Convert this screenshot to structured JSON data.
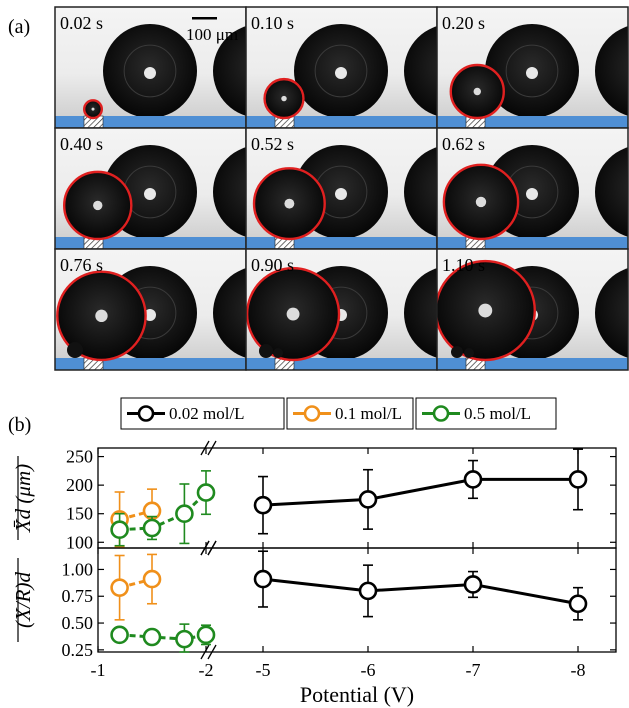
{
  "panel_a": {
    "label": "(a)",
    "scale_bar_label": "100 μm",
    "frames": [
      {
        "time": "0.02 s",
        "drop_r_frac": 0.025
      },
      {
        "time": "0.10 s",
        "drop_r_frac": 0.055
      },
      {
        "time": "0.20 s",
        "drop_r_frac": 0.075
      },
      {
        "time": "0.40 s",
        "drop_r_frac": 0.095
      },
      {
        "time": "0.52 s",
        "drop_r_frac": 0.1
      },
      {
        "time": "0.62 s",
        "drop_r_frac": 0.105
      },
      {
        "time": "0.76 s",
        "drop_r_frac": 0.125
      },
      {
        "time": "0.90 s",
        "drop_r_frac": 0.13
      },
      {
        "time": "1.10 s",
        "drop_r_frac": 0.14
      }
    ],
    "colors": {
      "substrate": "#4f8fd4",
      "contour": "#e02020",
      "drop": "#0d0d0d",
      "background_top": "#f2f2f2",
      "background_bottom": "#d8d8d8",
      "frame_border": "#222222"
    }
  },
  "panel_b": {
    "label": "(b)",
    "legend": [
      {
        "label": "0.02 mol/L",
        "color": "#000000"
      },
      {
        "label": "0.1 mol/L",
        "color": "#f0901a"
      },
      {
        "label": "0.5 mol/L",
        "color": "#1f8a1f"
      }
    ]
  },
  "chart_data": [
    {
      "type": "line",
      "ylabel": "X̄d (μm)",
      "ylim": [
        90,
        265
      ],
      "yticks": [
        100,
        150,
        200,
        250
      ],
      "xlabel": "Potential (V)",
      "axis_break": "between -2 and -5",
      "series": [
        {
          "name": "0.02 mol/L",
          "color": "#000000",
          "x": [
            -5,
            -6,
            -7,
            -8
          ],
          "y": [
            165,
            175,
            210,
            210
          ],
          "err": [
            50,
            52,
            33,
            53
          ]
        },
        {
          "name": "0.1 mol/L",
          "color": "#f0901a",
          "x": [
            -1.2,
            -1.5
          ],
          "y": [
            140,
            155
          ],
          "err": [
            48,
            38
          ]
        },
        {
          "name": "0.5 mol/L",
          "color": "#1f8a1f",
          "x": [
            -1.2,
            -1.5,
            -1.8,
            -2.0
          ],
          "y": [
            122,
            125,
            150,
            187
          ],
          "err": [
            28,
            20,
            52,
            38
          ]
        }
      ]
    },
    {
      "type": "line",
      "ylabel": "(X/R)d",
      "ylim": [
        0.23,
        1.2
      ],
      "yticks": [
        0.25,
        0.5,
        0.75,
        1.0
      ],
      "ytick_labels": [
        "0.25",
        "0.50",
        "0.75",
        "1.00"
      ],
      "xlabel": "Potential (V)",
      "xtick_labels": [
        "-1",
        "-2",
        "-5",
        "-6",
        "-7",
        "-8"
      ],
      "axis_break": "between -2 and -5",
      "series": [
        {
          "name": "0.02 mol/L",
          "color": "#000000",
          "x": [
            -5,
            -6,
            -7,
            -8
          ],
          "y": [
            0.91,
            0.8,
            0.86,
            0.68
          ],
          "err": [
            0.26,
            0.24,
            0.12,
            0.15
          ]
        },
        {
          "name": "0.1 mol/L",
          "color": "#f0901a",
          "x": [
            -1.2,
            -1.5
          ],
          "y": [
            0.83,
            0.91
          ],
          "err": [
            0.3,
            0.23
          ]
        },
        {
          "name": "0.5 mol/L",
          "color": "#1f8a1f",
          "x": [
            -1.2,
            -1.5,
            -1.8,
            -2.0
          ],
          "y": [
            0.39,
            0.37,
            0.35,
            0.39
          ],
          "err": [
            0.03,
            0.02,
            0.14,
            0.09
          ]
        }
      ]
    }
  ]
}
